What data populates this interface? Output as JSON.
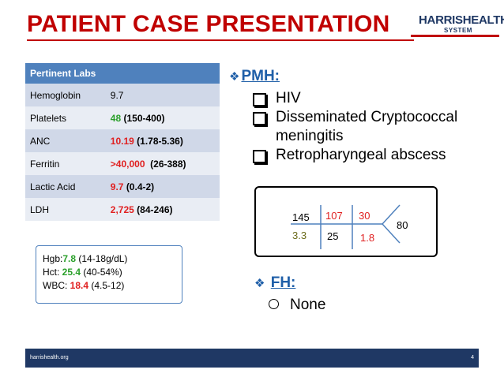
{
  "slide": {
    "title": "PATIENT CASE PRESENTATION",
    "logo_line1": "HARRISHEALTH",
    "logo_line2": "SYSTEM",
    "footer_site": "harrishealth.org",
    "page_number": "4"
  },
  "labs": {
    "header": "Pertinent Labs",
    "rows": [
      {
        "name": "Hemoglobin",
        "value": "9.7",
        "range": ""
      },
      {
        "name": "Platelets",
        "value": "48",
        "range": "(150-400)"
      },
      {
        "name": "ANC",
        "value": "10.19",
        "range": "(1.78-5.36)"
      },
      {
        "name": "Ferritin",
        "value": ">40,000",
        "range": "(26-388)"
      },
      {
        "name": "Lactic Acid",
        "value": "9.7",
        "range": "(0.4-2)"
      },
      {
        "name": "LDH",
        "value": "2,725",
        "range": "(84-246)"
      }
    ]
  },
  "cbc": {
    "hgb_label": "Hgb:",
    "hgb_value": "7.8",
    "hgb_range": " (14-18g/dL)",
    "hct_label": "Hct: ",
    "hct_value": "25.4",
    "hct_range": " (40-54%)",
    "wbc_label": "WBC: ",
    "wbc_value": "18.4",
    "wbc_range": " (4.5-12)"
  },
  "pmh": {
    "heading": "PMH:",
    "items": [
      "HIV",
      "Disseminated Cryptococcal meningitis",
      "Retropharyngeal abscess"
    ]
  },
  "fishbone": {
    "na": "145",
    "cl": "107",
    "bun": "30",
    "glucose": "80",
    "k": "3.3",
    "co2": "25",
    "cr": "1.8"
  },
  "fh": {
    "heading": "FH:",
    "items": [
      "None"
    ]
  },
  "colors": {
    "title_red": "#c00000",
    "table_header": "#4f81bd",
    "heading_blue": "#1f5fa8",
    "footer_navy": "#1f3864",
    "value_green": "#2aa02a",
    "value_red": "#e02020"
  }
}
